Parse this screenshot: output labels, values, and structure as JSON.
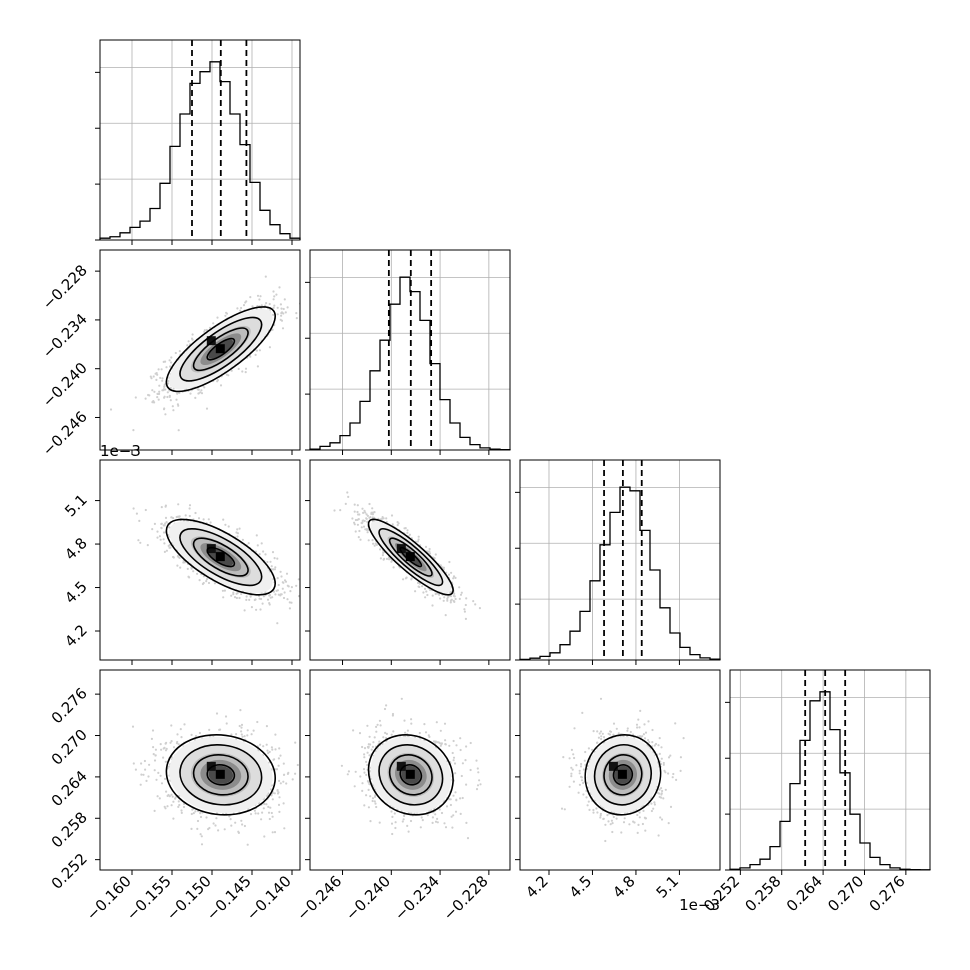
{
  "chart_data": {
    "type": "corner",
    "params": [
      {
        "range": [
          -0.164,
          -0.139
        ],
        "ticks": [
          -0.16,
          -0.155,
          -0.15,
          -0.145,
          -0.14
        ],
        "tick_labels": [
          "−0.160",
          "−0.155",
          "−0.150",
          "−0.145",
          "−0.140"
        ],
        "offset_label": "",
        "quantiles": [
          -0.1525,
          -0.1489,
          -0.1457
        ],
        "hist_edges_start": -0.164,
        "hist_bin_width": 0.00125,
        "hist_heights": [
          0.01,
          0.018,
          0.04,
          0.07,
          0.105,
          0.175,
          0.315,
          0.52,
          0.7,
          0.87,
          0.935,
          0.99,
          0.88,
          0.7,
          0.53,
          0.32,
          0.165,
          0.085,
          0.035,
          0.01
        ]
      },
      {
        "range": [
          -0.25,
          -0.2254
        ],
        "ticks": [
          -0.246,
          -0.24,
          -0.234,
          -0.228
        ],
        "tick_labels": [
          "−0.246",
          "−0.240",
          "−0.234",
          "−0.228"
        ],
        "offset_label": "",
        "quantiles": [
          -0.2403,
          -0.2376,
          -0.2351
        ],
        "hist_edges_start": -0.25,
        "hist_bin_width": 0.00123,
        "hist_heights": [
          0.005,
          0.02,
          0.04,
          0.08,
          0.15,
          0.27,
          0.44,
          0.61,
          0.81,
          0.96,
          0.88,
          0.72,
          0.48,
          0.28,
          0.15,
          0.07,
          0.03,
          0.012,
          0.005,
          0.002
        ]
      },
      {
        "range": [
          4.0,
          5.38
        ],
        "ticks": [
          4.2,
          4.5,
          4.8,
          5.1
        ],
        "tick_labels": [
          "4.2",
          "4.5",
          "4.8",
          "5.1"
        ],
        "offset_label": "1e−3",
        "quantiles": [
          4.58,
          4.71,
          4.84
        ],
        "hist_edges_start": 4.0,
        "hist_bin_width": 0.069,
        "hist_heights": [
          0.003,
          0.01,
          0.02,
          0.04,
          0.085,
          0.16,
          0.27,
          0.44,
          0.64,
          0.82,
          0.96,
          0.94,
          0.72,
          0.5,
          0.29,
          0.15,
          0.07,
          0.03,
          0.012,
          0.005
        ]
      },
      {
        "range": [
          0.2505,
          0.2795
        ],
        "ticks": [
          0.252,
          0.258,
          0.264,
          0.27,
          0.276
        ],
        "tick_labels": [
          "0.252",
          "0.258",
          "0.264",
          "0.270",
          "0.276"
        ],
        "offset_label": "",
        "quantiles": [
          0.2614,
          0.2643,
          0.2672
        ],
        "hist_edges_start": 0.2505,
        "hist_bin_width": 0.00145,
        "hist_heights": [
          0.004,
          0.012,
          0.03,
          0.06,
          0.13,
          0.27,
          0.48,
          0.72,
          0.94,
          0.99,
          0.78,
          0.54,
          0.31,
          0.15,
          0.07,
          0.03,
          0.012,
          0.004,
          0.002,
          0.001
        ]
      }
    ],
    "pairs": [
      {
        "row": 1,
        "col": 0,
        "corr": 0.78
      },
      {
        "row": 2,
        "col": 0,
        "corr": -0.7
      },
      {
        "row": 2,
        "col": 1,
        "corr": -0.88
      },
      {
        "row": 3,
        "col": 0,
        "corr": -0.08
      },
      {
        "row": 3,
        "col": 1,
        "corr": -0.12
      },
      {
        "row": 3,
        "col": 2,
        "corr": 0.04
      }
    ],
    "contour_levels_sigma": [
      0.5,
      1.0,
      1.5,
      2.0
    ],
    "colors": {
      "hist": "#000000",
      "contour": "#000000",
      "samples": "#777777",
      "grid": "#b0b0b0"
    },
    "grid": true
  }
}
